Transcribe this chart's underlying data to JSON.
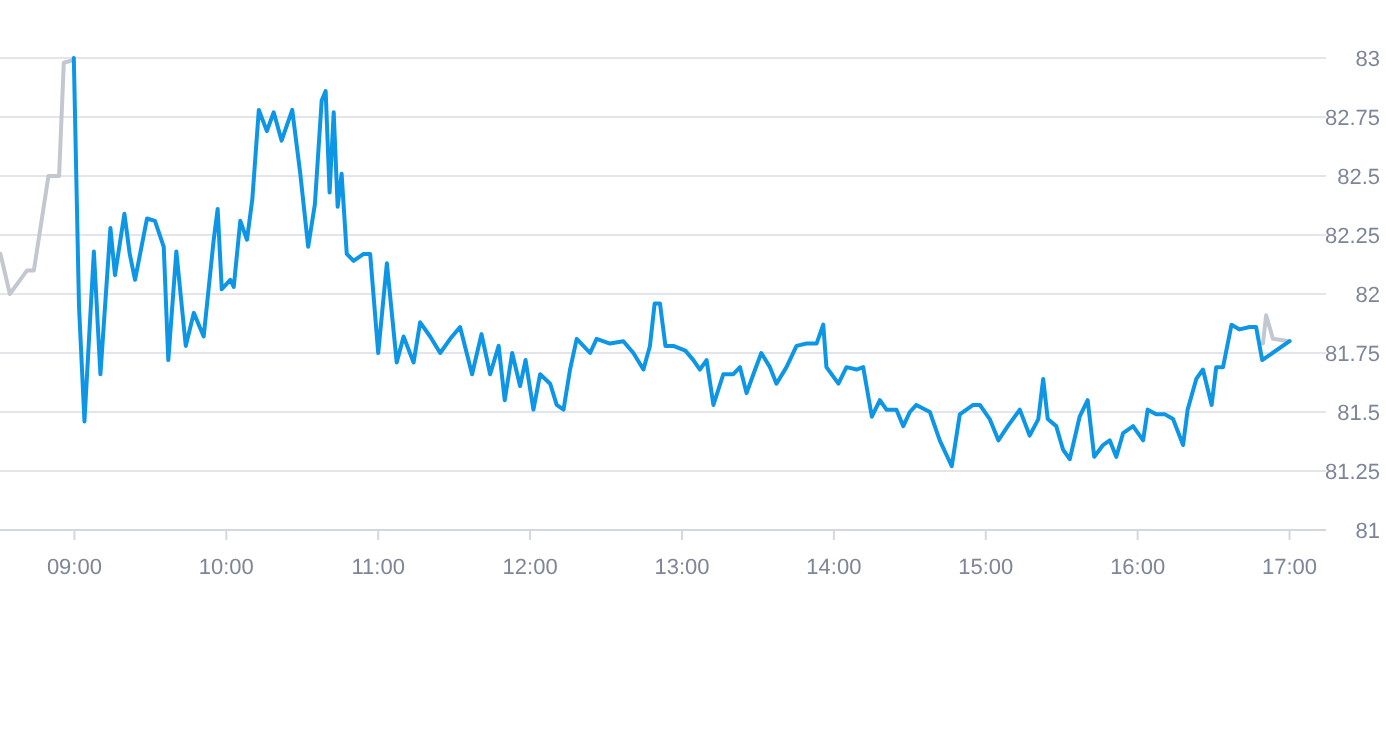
{
  "chart_data": {
    "type": "line",
    "xlim": [
      8.51,
      17.24
    ],
    "ylim": [
      81,
      83
    ],
    "xticks": [
      {
        "value": 9,
        "label": "09:00"
      },
      {
        "value": 10,
        "label": "10:00"
      },
      {
        "value": 11,
        "label": "11:00"
      },
      {
        "value": 12,
        "label": "12:00"
      },
      {
        "value": 13,
        "label": "13:00"
      },
      {
        "value": 14,
        "label": "14:00"
      },
      {
        "value": 15,
        "label": "15:00"
      },
      {
        "value": 16,
        "label": "16:00"
      },
      {
        "value": 17,
        "label": "17:00"
      }
    ],
    "yticks": [
      81,
      81.25,
      81.5,
      81.75,
      82,
      82.25,
      82.5,
      82.75,
      83
    ],
    "grid": "y",
    "marker": "none",
    "line_style": "solid",
    "series": [
      {
        "color": "#c3c7cf",
        "x": [
          8.513,
          8.575,
          8.688,
          8.733,
          8.829,
          8.899,
          8.93,
          8.987,
          null,
          16.825,
          16.846,
          16.891,
          17.0
        ],
        "values": [
          82.17,
          82.0,
          82.1,
          82.1,
          82.5,
          82.5,
          82.98,
          82.99,
          null,
          81.79,
          81.91,
          81.81,
          81.8
        ]
      },
      {
        "color": "#0e96e6",
        "x": [
          8.996,
          9.03,
          9.066,
          9.128,
          9.171,
          9.237,
          9.267,
          9.329,
          9.364,
          9.399,
          9.478,
          9.53,
          9.588,
          9.618,
          9.671,
          9.733,
          9.786,
          9.851,
          9.917,
          9.943,
          9.97,
          10.026,
          10.049,
          10.092,
          10.136,
          10.171,
          10.214,
          10.267,
          10.312,
          10.364,
          10.434,
          10.487,
          10.539,
          10.583,
          10.628,
          10.654,
          10.68,
          10.707,
          10.733,
          10.759,
          10.793,
          10.838,
          10.904,
          10.947,
          11.0,
          11.057,
          11.122,
          11.167,
          11.233,
          11.276,
          11.342,
          11.408,
          11.474,
          11.539,
          11.618,
          11.68,
          11.737,
          11.793,
          11.833,
          11.882,
          11.934,
          11.97,
          12.022,
          12.066,
          12.132,
          12.175,
          12.22,
          12.263,
          12.307,
          12.351,
          12.395,
          12.438,
          12.526,
          12.614,
          12.68,
          12.746,
          12.789,
          12.82,
          12.855,
          12.891,
          12.943,
          13.022,
          13.075,
          13.118,
          13.162,
          13.207,
          13.272,
          13.338,
          13.382,
          13.425,
          13.47,
          13.522,
          13.579,
          13.622,
          13.688,
          13.754,
          13.82,
          13.886,
          13.93,
          13.951,
          14.03,
          14.083,
          14.149,
          14.193,
          14.25,
          14.303,
          14.346,
          14.412,
          14.457,
          14.5,
          14.543,
          14.632,
          14.697,
          14.776,
          14.829,
          14.917,
          14.961,
          15.026,
          15.083,
          15.145,
          15.224,
          15.289,
          15.346,
          15.378,
          15.408,
          15.464,
          15.509,
          15.553,
          15.618,
          15.671,
          15.714,
          15.772,
          15.816,
          15.859,
          15.904,
          15.97,
          16.036,
          16.066,
          16.122,
          16.18,
          16.233,
          16.299,
          16.329,
          16.386,
          16.43,
          16.487,
          16.517,
          16.562,
          16.618,
          16.671,
          16.737,
          16.78,
          16.82,
          17.0
        ],
        "values": [
          83.0,
          81.95,
          81.46,
          82.18,
          81.66,
          82.28,
          82.08,
          82.34,
          82.17,
          82.06,
          82.32,
          82.31,
          82.2,
          81.72,
          82.18,
          81.78,
          81.92,
          81.82,
          82.23,
          82.36,
          82.02,
          82.06,
          82.03,
          82.31,
          82.23,
          82.4,
          82.78,
          82.69,
          82.77,
          82.65,
          82.78,
          82.51,
          82.2,
          82.38,
          82.82,
          82.86,
          82.43,
          82.77,
          82.37,
          82.51,
          82.17,
          82.14,
          82.17,
          82.17,
          81.75,
          82.13,
          81.71,
          81.82,
          81.71,
          81.88,
          81.82,
          81.75,
          81.81,
          81.86,
          81.66,
          81.83,
          81.66,
          81.78,
          81.55,
          81.75,
          81.61,
          81.72,
          81.51,
          81.66,
          81.62,
          81.53,
          81.51,
          81.68,
          81.81,
          81.78,
          81.75,
          81.81,
          81.79,
          81.8,
          81.75,
          81.68,
          81.78,
          81.96,
          81.96,
          81.78,
          81.78,
          81.76,
          81.72,
          81.68,
          81.72,
          81.53,
          81.66,
          81.66,
          81.69,
          81.58,
          81.66,
          81.75,
          81.69,
          81.62,
          81.69,
          81.78,
          81.79,
          81.79,
          81.87,
          81.69,
          81.62,
          81.69,
          81.68,
          81.69,
          81.48,
          81.55,
          81.51,
          81.51,
          81.44,
          81.5,
          81.53,
          81.5,
          81.38,
          81.27,
          81.49,
          81.53,
          81.53,
          81.47,
          81.38,
          81.44,
          81.51,
          81.4,
          81.47,
          81.64,
          81.47,
          81.44,
          81.34,
          81.3,
          81.48,
          81.55,
          81.31,
          81.36,
          81.38,
          81.31,
          81.41,
          81.44,
          81.38,
          81.51,
          81.49,
          81.49,
          81.47,
          81.36,
          81.51,
          81.64,
          81.68,
          81.53,
          81.69,
          81.69,
          81.87,
          81.85,
          81.86,
          81.86,
          81.72,
          81.8
        ]
      }
    ]
  }
}
